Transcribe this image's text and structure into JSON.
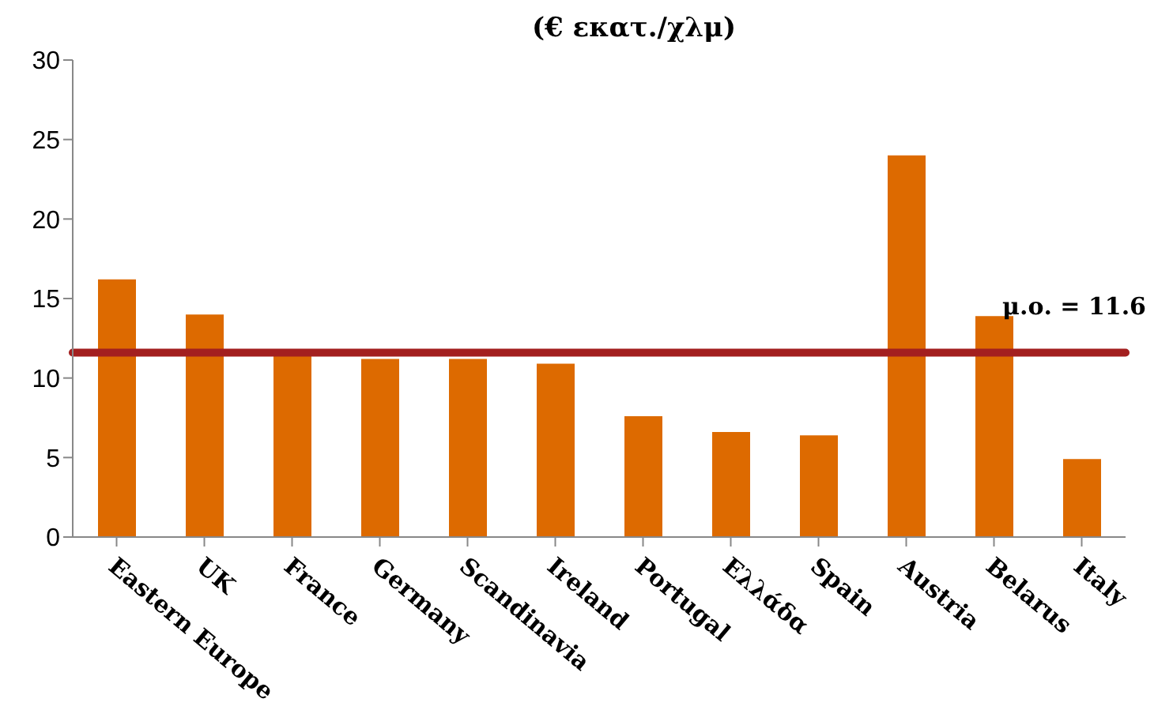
{
  "chart_data": {
    "type": "bar",
    "title": "(€ εκατ./χλμ)",
    "categories": [
      "Eastern Europe",
      "UK",
      "France",
      "Germany",
      "Scandinavia",
      "Ireland",
      "Portugal",
      "Ελλάδα",
      "Spain",
      "Austria",
      "Belarus",
      "Italy"
    ],
    "values": [
      16.2,
      14.0,
      11.5,
      11.2,
      11.2,
      10.9,
      7.6,
      6.6,
      6.4,
      24.0,
      13.9,
      4.9
    ],
    "color": "#dd6a00",
    "ylim": [
      0,
      30
    ],
    "yticks": [
      0,
      5,
      10,
      15,
      20,
      25,
      30
    ],
    "ref_lines": [
      {
        "axis": "y",
        "value": 11.6,
        "label": "μ.ο. = 11.6",
        "color": "#a31f1f"
      }
    ],
    "grid": false,
    "legend": false
  }
}
